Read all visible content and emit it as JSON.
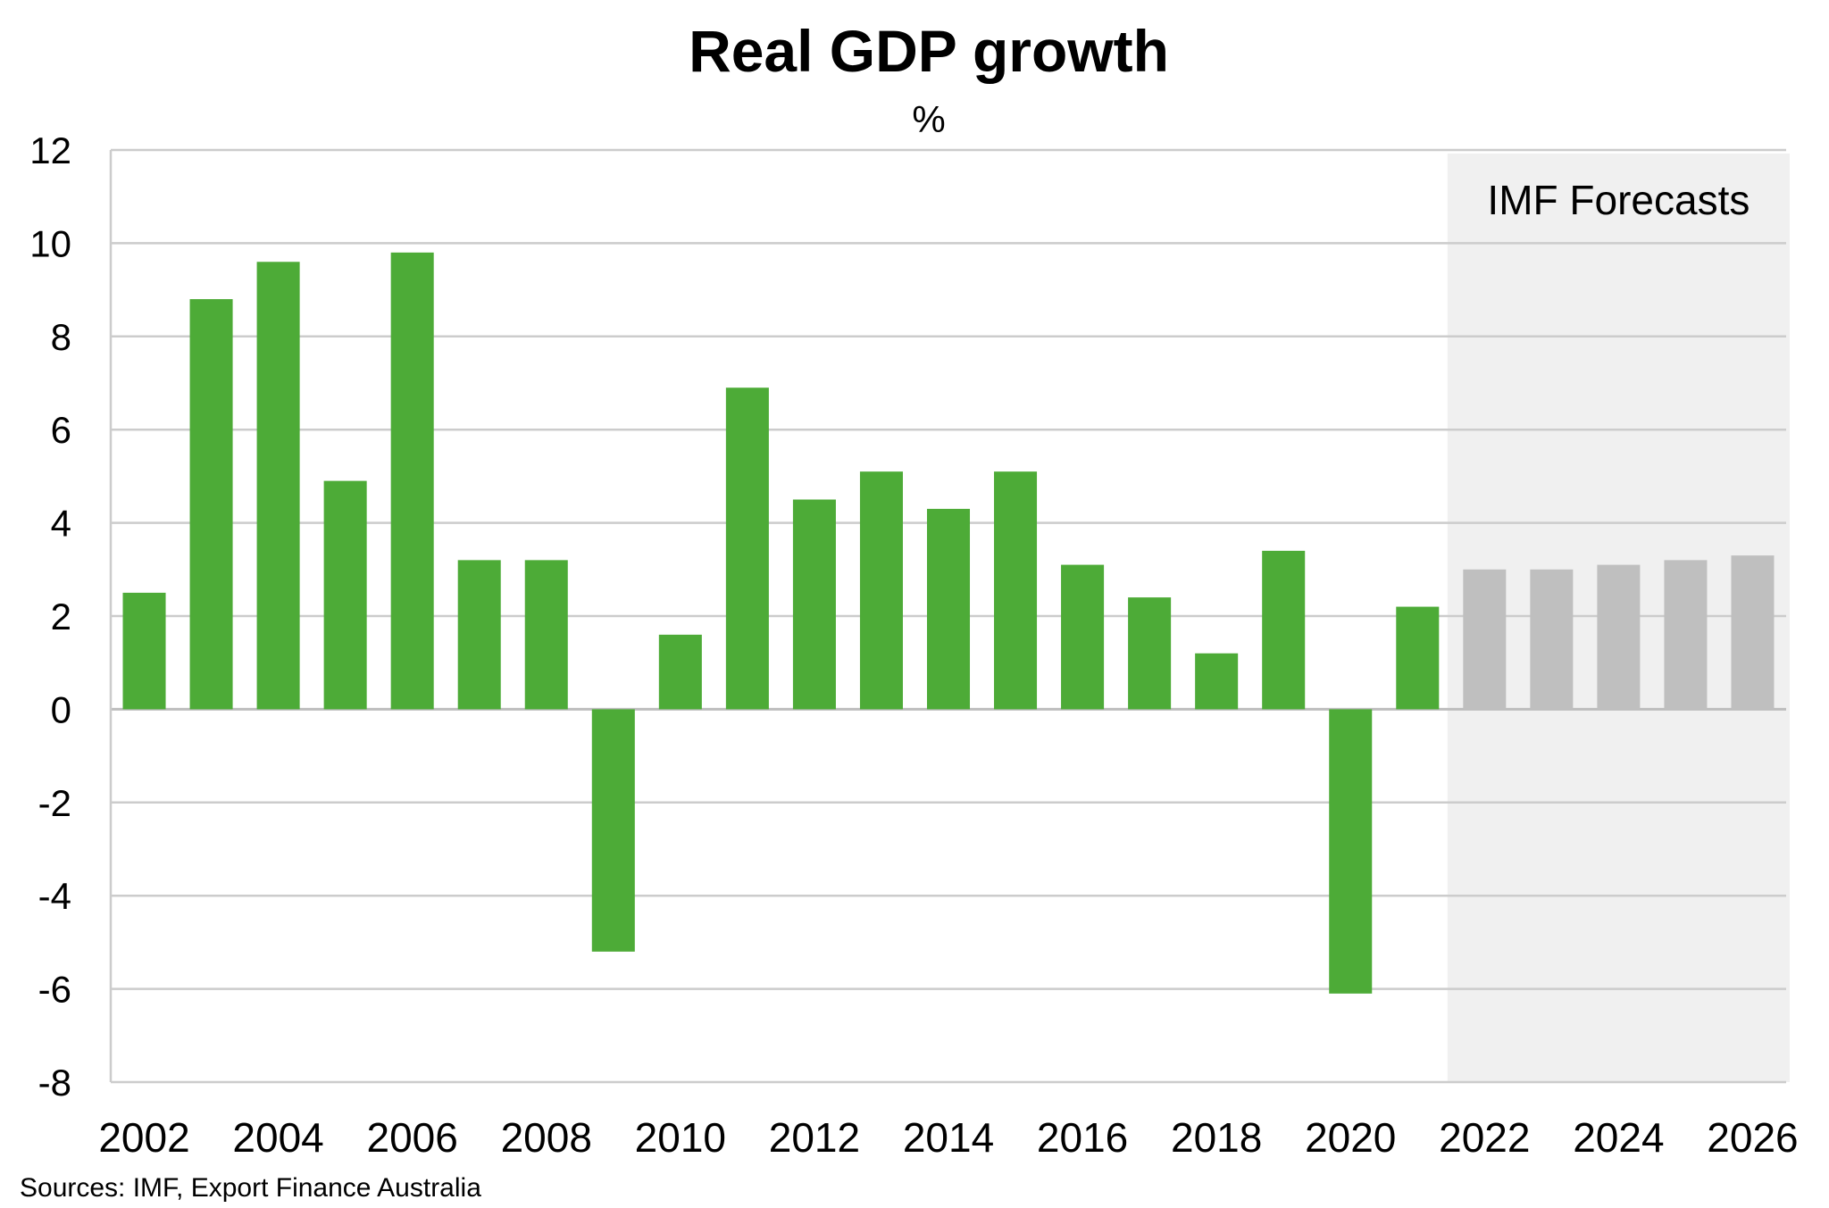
{
  "chart_data": {
    "type": "bar",
    "title": "Real GDP growth",
    "subtitle": "%",
    "xlabel": "",
    "ylabel": "%",
    "ylim": [
      -8,
      12
    ],
    "yticks": [
      12,
      10,
      8,
      6,
      4,
      2,
      0,
      -2,
      -4,
      -6,
      -8
    ],
    "xtick_labels": [
      "2002",
      "2004",
      "2006",
      "2008",
      "2010",
      "2012",
      "2014",
      "2016",
      "2018",
      "2020",
      "2022",
      "2024",
      "2026"
    ],
    "categories": [
      "2002",
      "2003",
      "2004",
      "2005",
      "2006",
      "2007",
      "2008",
      "2009",
      "2010",
      "2011",
      "2012",
      "2013",
      "2014",
      "2015",
      "2016",
      "2017",
      "2018",
      "2019",
      "2020",
      "2021",
      "2022",
      "2023",
      "2024",
      "2025",
      "2026"
    ],
    "series": [
      {
        "name": "Actual",
        "color": "#4dab37",
        "values": [
          2.5,
          8.8,
          9.6,
          4.9,
          9.8,
          3.2,
          3.2,
          -5.2,
          1.6,
          6.9,
          4.5,
          5.1,
          4.3,
          5.1,
          3.1,
          2.4,
          1.2,
          3.4,
          -6.1,
          2.2,
          null,
          null,
          null,
          null,
          null
        ]
      },
      {
        "name": "IMF Forecasts",
        "color": "#bfbfbf",
        "values": [
          null,
          null,
          null,
          null,
          null,
          null,
          null,
          null,
          null,
          null,
          null,
          null,
          null,
          null,
          null,
          null,
          null,
          null,
          null,
          null,
          3.0,
          3.0,
          3.1,
          3.2,
          3.3
        ]
      }
    ],
    "forecast_region": {
      "label": "IMF Forecasts",
      "start_category": "2022",
      "end_category": "2026",
      "color": "#f0f0f0"
    },
    "grid": true,
    "source": "Sources: IMF, Export Finance Australia"
  }
}
